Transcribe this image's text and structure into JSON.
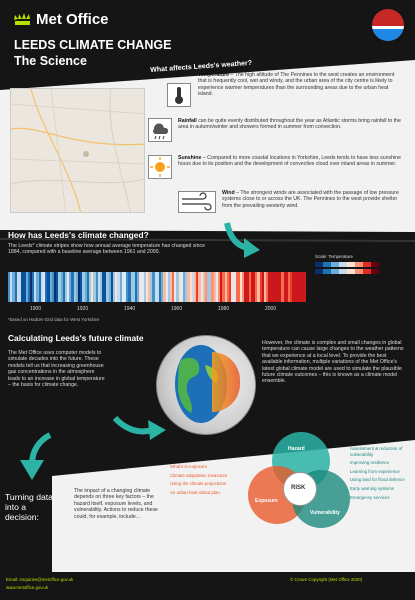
{
  "header": {
    "brand": "Met Office",
    "title_line1": "LEEDS CLIMATE CHANGE",
    "title_line2": "The Science"
  },
  "weather_section": {
    "title": "What affects Leeds's weather?",
    "items": [
      {
        "term": "Temperature",
        "text": "– The high altitude of The Pennines to the west creates an environment that is frequently cool, wet and windy, and the urban area of the city centre is likely to experience warmer temperatures than the surrounding areas due to the urban heat island."
      },
      {
        "term": "Rainfall",
        "text": "can be quite evenly distributed throughout the year as Atlantic storms bring rainfall to the area in autumn/winter and showers formed in summer from convection."
      },
      {
        "term": "Sunshine",
        "text": "– Compared to more coastal locations in Yorkshire, Leeds tends to have less sunshine hours due to its position and the development of convective cloud over inland areas in summer."
      },
      {
        "term": "Wind",
        "text": "– The strongest winds are associated with the passage of low pressure systems close to or across the UK. The Pennines to the west provide shelter from the prevailing westerly wind."
      }
    ]
  },
  "change_section": {
    "title": "How has Leeds's climate changed?",
    "text": "The Leeds* climate stripes show how annual average temperature has changed since 1884, compared with a baseline average between 1961 and 2000.",
    "footnote": "*based on HadUK-Grid data for West Yorkshire",
    "years": [
      "1900",
      "1920",
      "1940",
      "1960",
      "1980",
      "2000"
    ],
    "legend_title": "Scale: Temperature",
    "legend_colors": [
      "#08306b",
      "#2171b5",
      "#6baed6",
      "#c6dbef",
      "#fee0d2",
      "#fc9272",
      "#de2d26",
      "#67000d"
    ]
  },
  "future_section": {
    "title": "Calculating Leeds's future climate",
    "text_left": "The Met Office uses computer models to simulate decades into the future. These models tell us that increasing greenhouse gas concentrations in the atmosphere leads to an increase in global temperature – the basis for climate change.",
    "text_right": "However, the climate is complex and small changes in global temperature can cause large changes to the weather patterns that we experience at a local level. To provide the best available information, multiple variations of the Met Office's latest global climate model are used to simulate the plausible future climate outcomes – this is known as a climate model ensemble."
  },
  "decision_section": {
    "title": "Turning data into a decision:",
    "text": "The impact of a changing climate depends on three key factors – the hazard itself, exposure levels, and vulnerability. Actions to reduce these could, for example, include…",
    "left_items": [
      "What's in exposure",
      "Climate adaptation measures",
      "Using the climate projections",
      "An urban heat island plan"
    ],
    "right_items": [
      "Assessment & reduction of vulnerability",
      "Improving resilience",
      "Learning from experience",
      "Using land for flood defence",
      "Early warning systems",
      "Emergency services"
    ],
    "venn_labels": [
      "Hazard",
      "Exposure",
      "Vulnerability",
      "RISK"
    ]
  },
  "footer": {
    "email": "Email: enquiries@metoffice.gov.uk",
    "web": "www.metoffice.gov.uk",
    "copyright": "© Crown Copyright (Met Office 2020)"
  },
  "colors": {
    "accent_green": "#b7e000",
    "teal": "#2bb3a6",
    "orange": "#e85a2a"
  }
}
